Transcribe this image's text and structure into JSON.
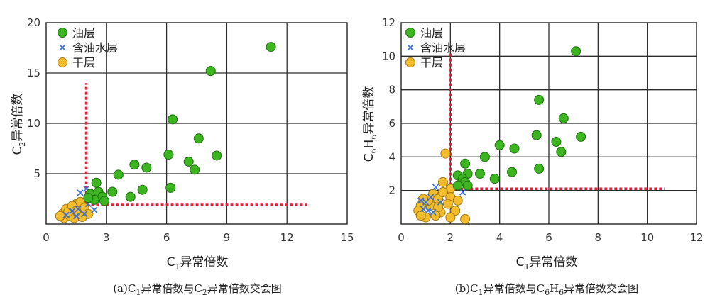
{
  "chart_data": [
    {
      "type": "scatter",
      "panel": "a",
      "caption": {
        "main": "(a)C",
        "s1": "1",
        "mid": "异常倍数与C",
        "s2": "2",
        "end": "异常倍数交会图"
      },
      "xlabel": {
        "main": "C",
        "sub": "1",
        "rest": "异常倍数"
      },
      "ylabel": {
        "main": "C",
        "sub": "2",
        "rest": "异常倍数"
      },
      "xlim": [
        0,
        15
      ],
      "ylim": [
        0,
        20
      ],
      "xticks": [
        "0",
        "3",
        "6",
        "9",
        "12",
        "15"
      ],
      "yticks": [
        "5",
        "10",
        "15",
        "20"
      ],
      "grid": true,
      "legend": [
        "油层",
        "含油水层",
        "干层"
      ],
      "colors": {
        "oil": "#3cb521",
        "water": "#3a6fd8",
        "dry": "#f3bd2e",
        "cutoff": "#e0203a"
      },
      "series": [
        {
          "name": "油层",
          "points": [
            [
              11.2,
              17.6
            ],
            [
              8.2,
              15.2
            ],
            [
              6.3,
              10.4
            ],
            [
              7.6,
              8.5
            ],
            [
              6.1,
              6.9
            ],
            [
              8.5,
              6.8
            ],
            [
              7.1,
              6.2
            ],
            [
              4.4,
              5.9
            ],
            [
              5.0,
              5.6
            ],
            [
              7.4,
              5.4
            ],
            [
              3.6,
              4.9
            ],
            [
              2.5,
              4.1
            ],
            [
              4.8,
              3.4
            ],
            [
              6.2,
              3.6
            ],
            [
              3.3,
              3.2
            ],
            [
              4.2,
              2.7
            ],
            [
              2.2,
              3.0
            ],
            [
              2.6,
              3.2
            ],
            [
              2.8,
              2.7
            ],
            [
              2.4,
              2.4
            ],
            [
              2.1,
              2.6
            ],
            [
              2.9,
              2.3
            ]
          ]
        },
        {
          "name": "含油水层",
          "points": [
            [
              1.7,
              3.1
            ],
            [
              2.0,
              3.5
            ],
            [
              1.3,
              1.3
            ],
            [
              1.6,
              1.5
            ],
            [
              1.9,
              1.0
            ],
            [
              2.4,
              1.4
            ],
            [
              1.0,
              0.9
            ],
            [
              1.5,
              0.8
            ],
            [
              2.1,
              2.0
            ]
          ]
        },
        {
          "name": "干层",
          "points": [
            [
              0.8,
              1.0
            ],
            [
              1.0,
              1.5
            ],
            [
              1.3,
              1.2
            ],
            [
              1.5,
              2.0
            ],
            [
              0.9,
              0.6
            ],
            [
              1.2,
              0.8
            ],
            [
              1.7,
              2.2
            ],
            [
              1.4,
              0.6
            ],
            [
              1.1,
              1.2
            ],
            [
              1.9,
              1.6
            ],
            [
              1.6,
              1.0
            ],
            [
              2.1,
              1.0
            ],
            [
              1.3,
              1.8
            ],
            [
              0.7,
              0.8
            ],
            [
              1.8,
              0.7
            ],
            [
              1.5,
              1.3
            ]
          ]
        }
      ],
      "cutoff_lines": [
        {
          "x": [
            2.0,
            2.0
          ],
          "y": [
            2.0,
            14.0
          ]
        },
        {
          "x": [
            2.0,
            13.0
          ],
          "y": [
            1.9,
            1.9
          ]
        }
      ]
    },
    {
      "type": "scatter",
      "panel": "b",
      "caption": {
        "main": "(b)C",
        "s1": "1",
        "mid": "异常倍数与C",
        "s2": "6",
        "mid2": "H",
        "s3": "6",
        "end": "异常倍数交会图"
      },
      "xlabel": {
        "main": "C",
        "sub": "1",
        "rest": "异常倍数"
      },
      "ylabel": {
        "a": "C",
        "sa": "6",
        "b": "H",
        "sb": "6",
        "rest": "异常倍数"
      },
      "xlim": [
        0,
        12
      ],
      "ylim": [
        0,
        12
      ],
      "xticks": [
        "0",
        "2",
        "4",
        "6",
        "8",
        "10",
        "12"
      ],
      "yticks": [
        "2",
        "4",
        "6",
        "8",
        "10",
        "12"
      ],
      "grid": true,
      "legend": [
        "油层",
        "含油水层",
        "干层"
      ],
      "colors": {
        "oil": "#3cb521",
        "water": "#3a6fd8",
        "dry": "#f3bd2e",
        "cutoff": "#e0203a"
      },
      "series": [
        {
          "name": "油层",
          "points": [
            [
              7.1,
              10.3
            ],
            [
              5.6,
              7.4
            ],
            [
              6.6,
              6.3
            ],
            [
              5.5,
              5.3
            ],
            [
              7.3,
              5.2
            ],
            [
              6.3,
              4.9
            ],
            [
              4.0,
              4.7
            ],
            [
              4.6,
              4.5
            ],
            [
              6.5,
              4.3
            ],
            [
              3.4,
              4.0
            ],
            [
              2.6,
              3.6
            ],
            [
              5.6,
              3.3
            ],
            [
              4.5,
              3.1
            ],
            [
              3.2,
              3.0
            ],
            [
              2.7,
              3.0
            ],
            [
              2.3,
              2.9
            ],
            [
              2.5,
              2.7
            ],
            [
              3.8,
              2.7
            ],
            [
              2.6,
              2.5
            ],
            [
              2.3,
              2.3
            ],
            [
              2.7,
              2.3
            ]
          ]
        },
        {
          "name": "含油水层",
          "points": [
            [
              1.4,
              2.2
            ],
            [
              1.2,
              1.6
            ],
            [
              1.0,
              1.3
            ],
            [
              0.9,
              0.9
            ],
            [
              1.3,
              0.7
            ],
            [
              0.8,
              1.4
            ],
            [
              2.5,
              1.9
            ],
            [
              1.6,
              1.3
            ],
            [
              1.1,
              0.8
            ]
          ]
        },
        {
          "name": "干层",
          "points": [
            [
              1.8,
              4.2
            ],
            [
              1.7,
              2.5
            ],
            [
              1.3,
              1.8
            ],
            [
              2.0,
              2.1
            ],
            [
              1.5,
              1.5
            ],
            [
              2.0,
              1.6
            ],
            [
              1.9,
              1.2
            ],
            [
              1.2,
              1.1
            ],
            [
              0.8,
              1.1
            ],
            [
              0.7,
              0.8
            ],
            [
              1.0,
              0.4
            ],
            [
              0.8,
              0.5
            ],
            [
              1.6,
              0.7
            ],
            [
              2.2,
              0.8
            ],
            [
              1.5,
              1.0
            ],
            [
              1.1,
              1.4
            ],
            [
              2.3,
              1.4
            ],
            [
              1.4,
              0.5
            ],
            [
              2.0,
              0.4
            ],
            [
              2.6,
              0.3
            ],
            [
              1.7,
              1.9
            ],
            [
              0.9,
              1.5
            ]
          ]
        }
      ],
      "cutoff_lines": [
        {
          "x": [
            2.0,
            2.0
          ],
          "y": [
            2.0,
            10.3
          ]
        },
        {
          "x": [
            2.0,
            10.7
          ],
          "y": [
            2.1,
            2.1
          ]
        }
      ]
    }
  ]
}
